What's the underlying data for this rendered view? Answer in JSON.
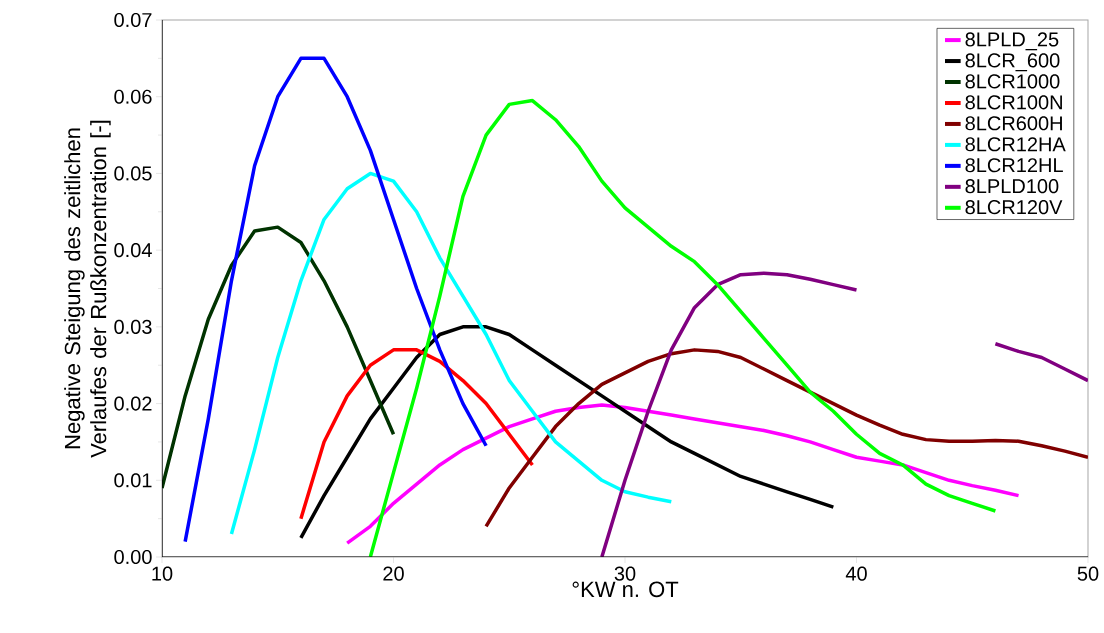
{
  "chart_data": {
    "type": "line",
    "xlabel": "°KW n. OT",
    "ylabel": "Negative Steigung des zeitlichen Verlaufes der Rußkonzentration [-]",
    "xlim": [
      10,
      50
    ],
    "xticks": [
      10,
      20,
      30,
      40,
      50
    ],
    "ylim": [
      0,
      0.07
    ],
    "yticks": [
      {
        "value": 0,
        "label": "0.00"
      },
      {
        "value": 0.01,
        "label": "0.01"
      },
      {
        "value": 0.02,
        "label": "0.02"
      },
      {
        "value": 0.03,
        "label": "0.03"
      },
      {
        "value": 0.04,
        "label": "0.04"
      },
      {
        "value": 0.05,
        "label": "0.05"
      },
      {
        "value": 0.06,
        "label": "0.06"
      },
      {
        "value": 0.07,
        "label": "0.07"
      }
    ],
    "grid": false,
    "legend": "top right",
    "marker": "none",
    "line_style": "solid",
    "series": [
      {
        "name": "8LPLD_25",
        "color": "#ff00ff",
        "x": [
          18,
          19,
          20,
          21,
          22,
          23,
          24,
          25,
          26,
          27,
          28,
          29,
          30,
          31,
          32,
          33,
          34,
          35,
          36,
          37,
          38,
          39,
          40,
          41,
          42,
          43,
          44,
          45,
          46,
          47
        ],
        "values": [
          0.0018,
          0.004,
          0.007,
          0.0095,
          0.012,
          0.014,
          0.0155,
          0.017,
          0.018,
          0.019,
          0.0195,
          0.0198,
          0.0195,
          0.019,
          0.0185,
          0.018,
          0.0175,
          0.017,
          0.0165,
          0.0158,
          0.015,
          0.014,
          0.013,
          0.0125,
          0.012,
          0.011,
          0.01,
          0.0093,
          0.0087,
          0.008
        ]
      },
      {
        "name": "8LCR_600",
        "color": "#000000",
        "x": [
          16,
          17,
          18,
          19,
          20,
          21,
          22,
          23,
          24,
          25,
          26,
          27,
          28,
          29,
          30,
          31,
          32,
          33,
          34,
          35,
          36,
          37,
          38,
          39
        ],
        "values": [
          0.0025,
          0.008,
          0.013,
          0.018,
          0.022,
          0.026,
          0.029,
          0.03,
          0.03,
          0.029,
          0.027,
          0.025,
          0.023,
          0.021,
          0.019,
          0.017,
          0.015,
          0.0135,
          0.012,
          0.0105,
          0.0095,
          0.0085,
          0.0075,
          0.0065
        ]
      },
      {
        "name": "8LCR1000",
        "color": "#003300",
        "x": [
          10,
          11,
          12,
          13,
          14,
          15,
          16,
          17,
          18,
          19,
          20
        ],
        "values": [
          0.009,
          0.021,
          0.031,
          0.038,
          0.0425,
          0.043,
          0.041,
          0.036,
          0.03,
          0.023,
          0.016
        ]
      },
      {
        "name": "8LCR100N",
        "color": "#ff0000",
        "x": [
          16,
          17,
          18,
          19,
          20,
          21,
          22,
          23,
          24,
          25,
          26
        ],
        "values": [
          0.005,
          0.015,
          0.021,
          0.025,
          0.027,
          0.027,
          0.0255,
          0.023,
          0.02,
          0.016,
          0.012
        ]
      },
      {
        "name": "8LCR600H",
        "color": "#800000",
        "x": [
          24,
          25,
          26,
          27,
          28,
          29,
          30,
          31,
          32,
          33,
          34,
          35,
          36,
          37,
          38,
          39,
          40,
          41,
          42,
          43,
          44,
          45,
          46,
          47,
          48,
          49,
          50
        ],
        "values": [
          0.004,
          0.009,
          0.013,
          0.017,
          0.02,
          0.0225,
          0.024,
          0.0255,
          0.0265,
          0.027,
          0.0268,
          0.026,
          0.0245,
          0.023,
          0.0215,
          0.02,
          0.0185,
          0.0172,
          0.016,
          0.0153,
          0.0151,
          0.0151,
          0.0152,
          0.0151,
          0.0145,
          0.0138,
          0.013
        ]
      },
      {
        "name": "8LCR12HA",
        "color": "#00ffff",
        "x": [
          13,
          14,
          15,
          16,
          17,
          18,
          19,
          20,
          21,
          22,
          23,
          24,
          25,
          26,
          27,
          28,
          29,
          30,
          31,
          32
        ],
        "values": [
          0.003,
          0.014,
          0.026,
          0.036,
          0.044,
          0.048,
          0.05,
          0.049,
          0.045,
          0.039,
          0.034,
          0.029,
          0.023,
          0.019,
          0.015,
          0.0125,
          0.01,
          0.0085,
          0.0078,
          0.0072
        ]
      },
      {
        "name": "8LCR12HL",
        "color": "#0000ff",
        "x": [
          11,
          12,
          13,
          14,
          15,
          16,
          17,
          18,
          19,
          20,
          21,
          22,
          23,
          24
        ],
        "values": [
          0.002,
          0.018,
          0.036,
          0.051,
          0.06,
          0.065,
          0.065,
          0.06,
          0.053,
          0.044,
          0.035,
          0.027,
          0.02,
          0.0145
        ]
      },
      {
        "name": "8LPLD100",
        "color": "#800080",
        "x": [
          29,
          30,
          31,
          32,
          33,
          34,
          35,
          36,
          37,
          38,
          39,
          40,
          41,
          42,
          43,
          44,
          45,
          46,
          47,
          48,
          49,
          50
        ],
        "values": [
          0,
          0.01,
          0.019,
          0.027,
          0.0325,
          0.0355,
          0.0368,
          0.037,
          0.0368,
          0.0362,
          0.0355,
          0.0348,
          null,
          null,
          null,
          null,
          null,
          0.0278,
          0.0268,
          0.026,
          0.0245,
          0.023
        ]
      },
      {
        "name": "8LCR120V",
        "color": "#00ff00",
        "x": [
          19,
          20,
          21,
          22,
          23,
          24,
          25,
          26,
          27,
          28,
          29,
          30,
          31,
          32,
          33,
          34,
          35,
          36,
          37,
          38,
          39,
          40,
          41,
          42,
          43,
          44,
          45,
          46
        ],
        "values": [
          0,
          0.011,
          0.022,
          0.034,
          0.047,
          0.055,
          0.059,
          0.0595,
          0.057,
          0.0535,
          0.049,
          0.0455,
          0.043,
          0.0405,
          0.0385,
          0.0355,
          0.032,
          0.0285,
          0.025,
          0.0215,
          0.019,
          0.016,
          0.0135,
          0.012,
          0.0095,
          0.008,
          0.007,
          0.006
        ]
      }
    ]
  }
}
